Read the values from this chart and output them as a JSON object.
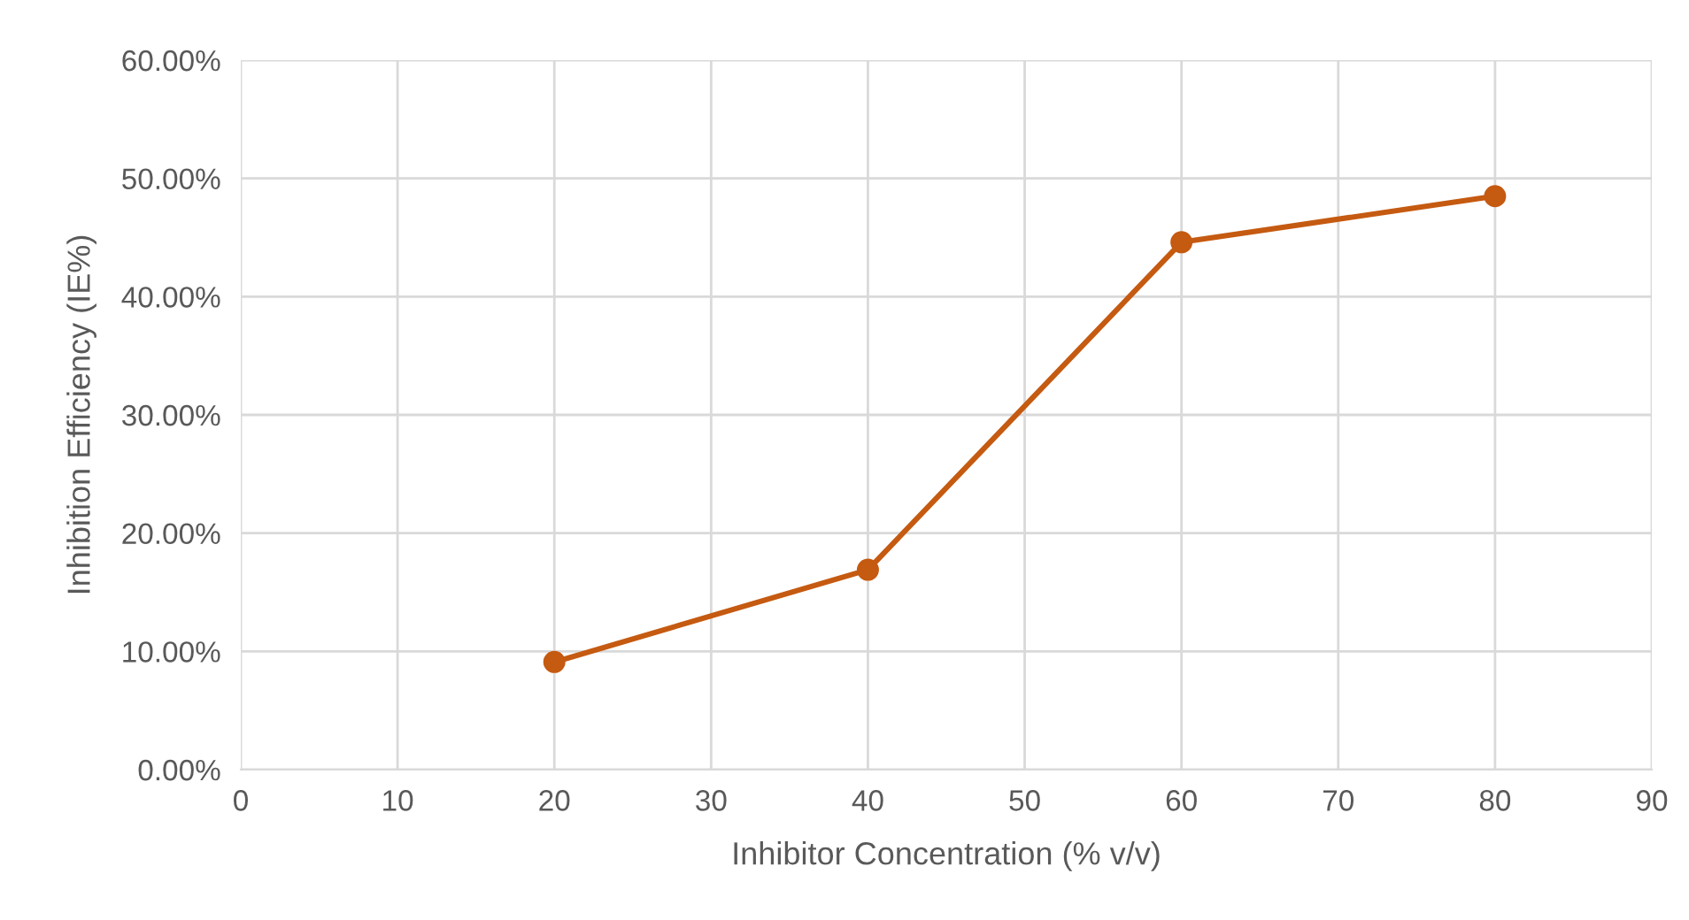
{
  "chart_data": {
    "type": "line",
    "xlabel": "Inhibitor Concentration (% v/v)",
    "ylabel": "Inhibition Efficiency (IE%)",
    "x": [
      20,
      40,
      60,
      80
    ],
    "series": [
      {
        "color": "#c55a11",
        "values": [
          9.1,
          16.9,
          44.6,
          48.5
        ]
      }
    ],
    "xlim": [
      0,
      90
    ],
    "xticks": [
      0,
      10,
      20,
      30,
      40,
      50,
      60,
      70,
      80,
      90
    ],
    "ylim": [
      0,
      60
    ],
    "yticks": [
      {
        "value": 0,
        "label": "0.00%"
      },
      {
        "value": 10,
        "label": "10.00%"
      },
      {
        "value": 20,
        "label": "20.00%"
      },
      {
        "value": 30,
        "label": "30.00%"
      },
      {
        "value": 40,
        "label": "40.00%"
      },
      {
        "value": 50,
        "label": "50.00%"
      },
      {
        "value": 60,
        "label": "60.00%"
      }
    ],
    "grid": true,
    "marker": "circle",
    "line_style": "solid"
  }
}
